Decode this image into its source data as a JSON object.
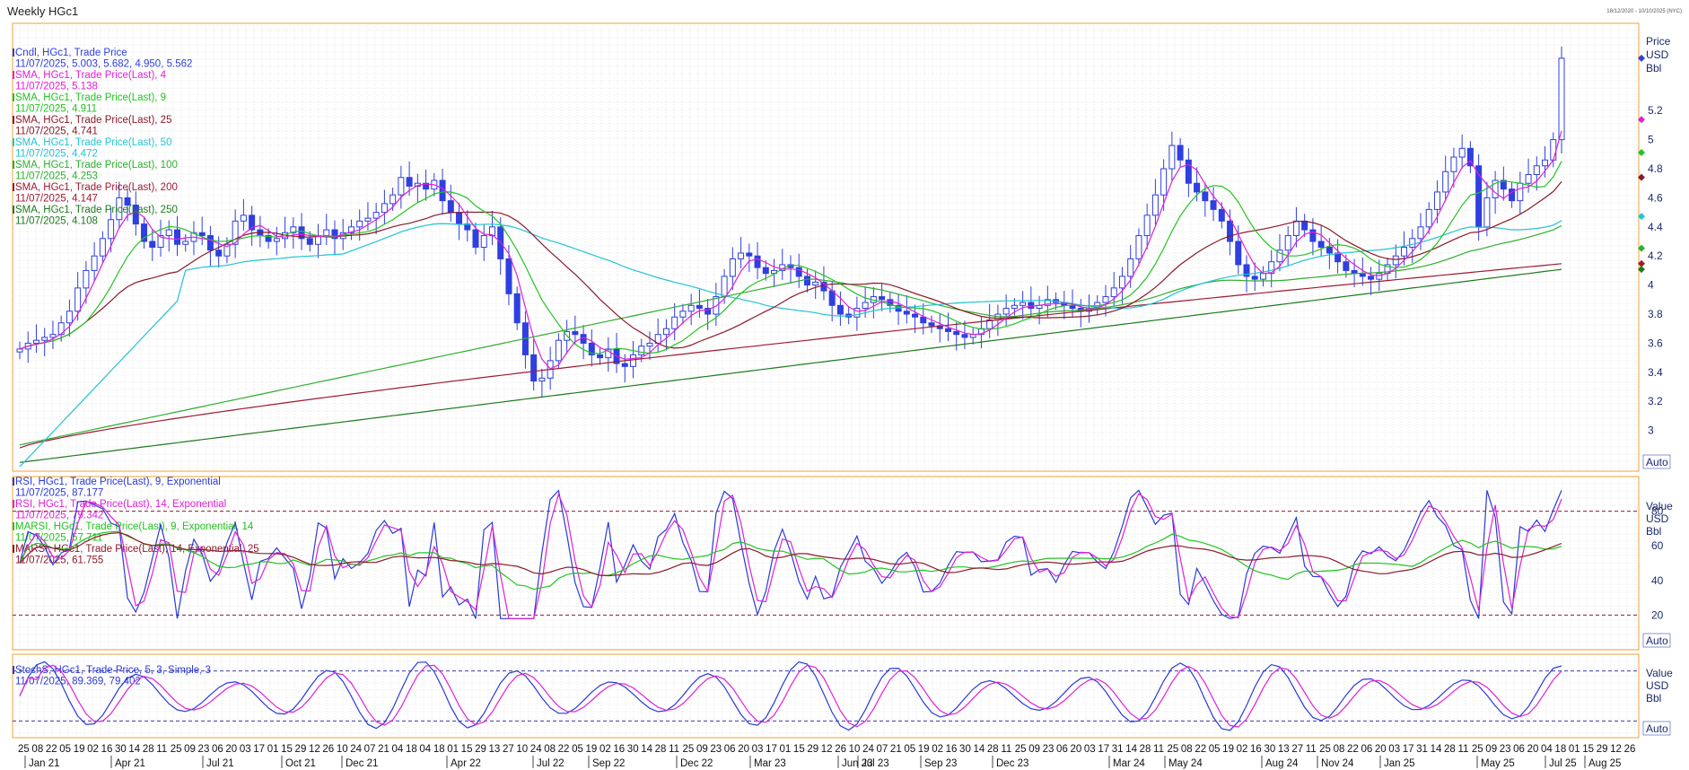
{
  "window": {
    "title": "Weekly HGc1",
    "date_range": "18/12/2020 - 10/10/2025 (NYC)"
  },
  "colors": {
    "candle": "#2f3fe0",
    "sma4": "#e020d8",
    "sma9": "#22c422",
    "sma25": "#8b1a2a",
    "sma50": "#22c4d4",
    "sma100": "#2eae2e",
    "sma200": "#9e1a32",
    "sma250": "#1e7a1e",
    "rsi9": "#2a3ad8",
    "rsi14": "#e020d8",
    "marsi9": "#22c422",
    "marsi14": "#8b1a2a",
    "stoch_k": "#2a3ad8",
    "stoch_d": "#e020d8",
    "border": "#f0a030"
  },
  "price_panel": {
    "legend": [
      {
        "label": "Cndl, HGc1, Trade Price",
        "value": "11/07/2025, 5.003, 5.682, 4.950, 5.562",
        "color": "#2f3fe0"
      },
      {
        "label": "SMA, HGc1, Trade Price(Last),  4",
        "value": "11/07/2025, 5.138",
        "color": "#e020d8"
      },
      {
        "label": "SMA, HGc1, Trade Price(Last),  9",
        "value": "11/07/2025, 4.911",
        "color": "#22c422"
      },
      {
        "label": "SMA, HGc1, Trade Price(Last),  25",
        "value": "11/07/2025, 4.741",
        "color": "#8b1a2a"
      },
      {
        "label": "SMA, HGc1, Trade Price(Last),  50",
        "value": "11/07/2025, 4.472",
        "color": "#22c4d4"
      },
      {
        "label": "SMA, HGc1, Trade Price(Last),  100",
        "value": "11/07/2025, 4.253",
        "color": "#2eae2e"
      },
      {
        "label": "SMA, HGc1, Trade Price(Last),  200",
        "value": "11/07/2025, 4.147",
        "color": "#9e1a32"
      },
      {
        "label": "SMA, HGc1, Trade Price(Last),  250",
        "value": "11/07/2025, 4.108",
        "color": "#1e7a1e"
      }
    ],
    "axis_header": [
      "Price",
      "USD",
      "Bbl"
    ],
    "ticks": [
      "5.2",
      "5",
      "4.8",
      "4.6",
      "4.4",
      "4.2",
      "4",
      "3.8",
      "3.6",
      "3.4",
      "3.2",
      "3"
    ],
    "tick_values": [
      5.2,
      5.0,
      4.8,
      4.6,
      4.4,
      4.2,
      4.0,
      3.8,
      3.6,
      3.4,
      3.2,
      3.0
    ],
    "auto_label": "Auto"
  },
  "rsi_panel": {
    "legend": [
      {
        "label": "RSI, HGc1, Trade Price(Last),  9, Exponential",
        "value": "11/07/2025, 87.177",
        "color": "#2a3ad8"
      },
      {
        "label": "RSI, HGc1, Trade Price(Last),  14, Exponential",
        "value": "11/07/2025, 79.342",
        "color": "#e020d8"
      },
      {
        "label": "MARSI, HGc1, Trade Price(Last),  9, Exponential, 14",
        "value": "11/07/2025, 57.711",
        "color": "#22c422"
      },
      {
        "label": "MARSI, HGc1, Trade Price(Last),  14, Exponential, 25",
        "value": "11/07/2025, 61.755",
        "color": "#8b1a2a"
      }
    ],
    "axis_header": [
      "Value",
      "USD",
      "Bbl"
    ],
    "ticks": [
      "80",
      "60",
      "40",
      "20"
    ],
    "auto_label": "Auto"
  },
  "stoch_panel": {
    "legend": [
      {
        "label": "StochS, HGc1, Trade Price,  5, 3, Simple, 3",
        "value": "11/07/2025, 89.369, 79.402",
        "color": "#2a3ad8"
      }
    ],
    "axis_header": [
      "Value",
      "USD",
      "Bbl"
    ],
    "auto_label": "Auto"
  },
  "x_axis": {
    "day_ticks": [
      "25",
      "08",
      "22",
      "05",
      "19",
      "02",
      "16",
      "30",
      "14",
      "28",
      "11",
      "25",
      "09",
      "23",
      "06",
      "20",
      "03",
      "17",
      "01",
      "15",
      "29",
      "12",
      "26",
      "10",
      "24",
      "07",
      "21",
      "04",
      "18",
      "04",
      "18",
      "01",
      "15",
      "29",
      "13",
      "27",
      "10",
      "24",
      "08",
      "22",
      "05",
      "19",
      "02",
      "16",
      "30",
      "14",
      "28",
      "11",
      "25",
      "09",
      "23",
      "06",
      "20",
      "03",
      "17",
      "01",
      "15",
      "29",
      "12",
      "26",
      "10",
      "24",
      "07",
      "21",
      "05",
      "19",
      "02",
      "16",
      "30",
      "14",
      "28",
      "11",
      "25",
      "09",
      "23",
      "06",
      "20",
      "03",
      "17",
      "31",
      "14",
      "28",
      "11",
      "25",
      "08",
      "22",
      "05",
      "19",
      "02",
      "16",
      "30",
      "13",
      "27",
      "11",
      "25",
      "08",
      "22",
      "06",
      "20",
      "03",
      "17",
      "31",
      "14",
      "28",
      "11",
      "25",
      "09",
      "23",
      "06",
      "20",
      "04",
      "18",
      "01",
      "15",
      "29",
      "12",
      "26"
    ],
    "month_labels": [
      "Jan 21",
      "Apr 21",
      "Jul 21",
      "Oct 21",
      "Dec 21",
      "Apr 22",
      "Jul 22",
      "Sep 22",
      "Dec 22",
      "Mar 23",
      "Jun 23",
      "Jul 23",
      "Sep 23",
      "Dec 23",
      "Mar 24",
      "May 24",
      "Aug 24",
      "Nov 24",
      "Jan 25",
      "May 25",
      "Jul 25",
      "Aug 25"
    ]
  },
  "chart_data": {
    "type": "candlestick",
    "instrument": "HGc1",
    "interval": "Weekly",
    "x_range": [
      "2021-01-25",
      "2025-08-26"
    ],
    "ylim_price": [
      2.72,
      5.8
    ],
    "ylim_rsi": [
      0,
      100
    ],
    "ylim_stoch": [
      0,
      100
    ],
    "rsi_levels": [
      80,
      20
    ],
    "stoch_levels": [
      80,
      20
    ],
    "grid": true,
    "close_series": [
      3.56,
      3.6,
      3.62,
      3.64,
      3.66,
      3.74,
      3.82,
      3.98,
      4.1,
      4.2,
      4.32,
      4.45,
      4.6,
      4.55,
      4.42,
      4.3,
      4.26,
      4.34,
      4.38,
      4.28,
      4.3,
      4.36,
      4.34,
      4.24,
      4.2,
      4.28,
      4.44,
      4.48,
      4.38,
      4.34,
      4.3,
      4.32,
      4.36,
      4.4,
      4.32,
      4.28,
      4.34,
      4.38,
      4.32,
      4.36,
      4.4,
      4.44,
      4.46,
      4.5,
      4.56,
      4.62,
      4.74,
      4.68,
      4.7,
      4.66,
      4.72,
      4.58,
      4.5,
      4.42,
      4.38,
      4.26,
      4.34,
      4.4,
      4.18,
      3.94,
      3.74,
      3.52,
      3.34,
      3.36,
      3.48,
      3.62,
      3.68,
      3.66,
      3.6,
      3.52,
      3.5,
      3.56,
      3.46,
      3.44,
      3.52,
      3.58,
      3.6,
      3.66,
      3.7,
      3.78,
      3.82,
      3.86,
      3.84,
      3.8,
      3.92,
      4.06,
      4.18,
      4.22,
      4.2,
      4.12,
      4.08,
      4.1,
      4.14,
      4.12,
      4.06,
      4.0,
      4.02,
      3.96,
      3.86,
      3.8,
      3.78,
      3.84,
      3.88,
      3.92,
      3.9,
      3.86,
      3.82,
      3.8,
      3.78,
      3.74,
      3.72,
      3.7,
      3.68,
      3.66,
      3.64,
      3.66,
      3.7,
      3.76,
      3.8,
      3.84,
      3.86,
      3.88,
      3.84,
      3.86,
      3.9,
      3.88,
      3.86,
      3.84,
      3.82,
      3.84,
      3.88,
      3.92,
      3.98,
      4.06,
      4.18,
      4.34,
      4.48,
      4.62,
      4.8,
      4.96,
      4.86,
      4.7,
      4.64,
      4.58,
      4.52,
      4.44,
      4.3,
      4.14,
      4.06,
      4.04,
      4.08,
      4.16,
      4.24,
      4.34,
      4.44,
      4.38,
      4.3,
      4.26,
      4.22,
      4.16,
      4.1,
      4.08,
      4.06,
      4.04,
      4.08,
      4.14,
      4.2,
      4.26,
      4.32,
      4.4,
      4.52,
      4.64,
      4.78,
      4.88,
      4.94,
      4.82,
      4.4,
      4.6,
      4.72,
      4.66,
      4.58,
      4.7,
      4.76,
      4.82,
      4.86,
      5.0,
      5.56
    ],
    "sma_4_last": 5.138,
    "sma_9_last": 4.911,
    "sma_25_last": 4.741,
    "sma_50_last": 4.472,
    "sma_100_last": 4.253,
    "sma_200_last": 4.147,
    "sma_250_last": 4.108,
    "rsi_9_last": 87.177,
    "rsi_14_last": 79.342,
    "marsi_9_last": 57.711,
    "marsi_14_last": 61.755,
    "stoch_k_last": 89.369,
    "stoch_d_last": 79.402
  }
}
